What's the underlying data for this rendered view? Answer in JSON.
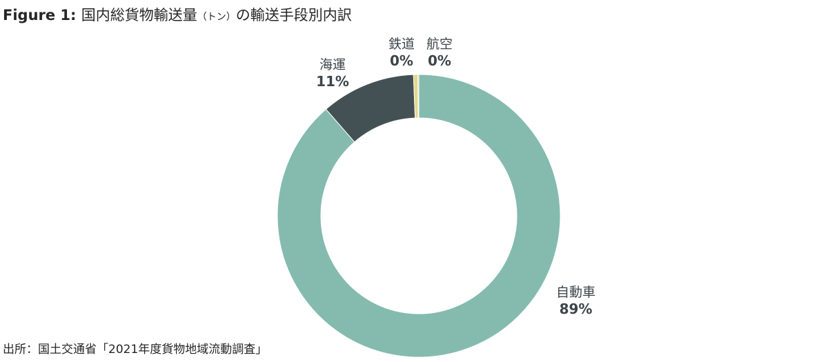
{
  "header": {
    "figure_label": "Figure 1:",
    "title_main": "国内総貨物輸送量",
    "title_unit": "（トン）",
    "title_rest": "の輸送手段別内訳"
  },
  "footer": {
    "source": "出所：国土交通省「2021年度貨物地域流動調査」"
  },
  "chart_data": {
    "type": "pie",
    "donut": true,
    "title": "国内総貨物輸送量（トン）の輸送手段別内訳",
    "slices": [
      {
        "name": "自動車",
        "value": 88.6,
        "label": "89%",
        "color": "#84bbae"
      },
      {
        "name": "海運",
        "value": 10.8,
        "label": "11%",
        "color": "#435154"
      },
      {
        "name": "鉄道",
        "value": 0.5,
        "label": "0%",
        "color": "#e3d889"
      },
      {
        "name": "航空",
        "value": 0.1,
        "label": "0%",
        "color": "#b8a84a"
      }
    ]
  }
}
